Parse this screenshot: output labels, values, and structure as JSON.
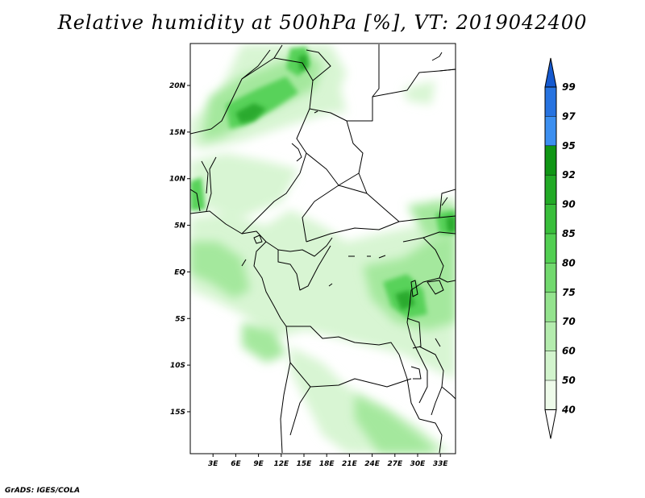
{
  "title": "Relative humidity at 500hPa [%], VT: 2019042400",
  "credit": "GrADS: IGES/COLA",
  "map": {
    "lat_ticks": [
      "20N",
      "15N",
      "10N",
      "5N",
      "EQ",
      "5S",
      "10S",
      "15S"
    ],
    "lon_ticks": [
      "3E",
      "6E",
      "9E",
      "12E",
      "15E",
      "18E",
      "21E",
      "24E",
      "27E",
      "30E",
      "33E"
    ],
    "lat_range": [
      -19.5,
      24.5
    ],
    "lon_range": [
      0,
      35
    ]
  },
  "colorbar": {
    "levels": [
      "40",
      "50",
      "60",
      "70",
      "75",
      "80",
      "85",
      "90",
      "92",
      "95",
      "97",
      "99"
    ],
    "colors": [
      "#eefbea",
      "#d2f4cd",
      "#b4ecae",
      "#94e38e",
      "#72d96e",
      "#52cf52",
      "#39be3b",
      "#22aa26",
      "#109615",
      "#3c8ff0",
      "#2773e0",
      "#1559cf"
    ],
    "low_color": "#ffffff"
  }
}
